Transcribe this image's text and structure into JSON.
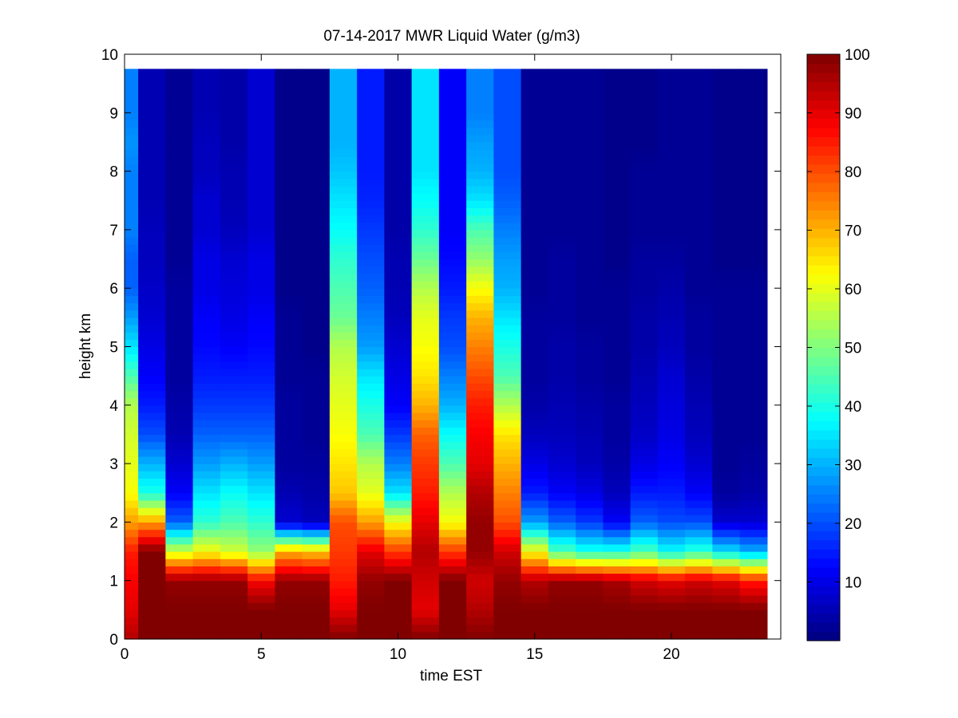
{
  "chart_data": {
    "type": "heatmap",
    "title": "07-14-2017 MWR Liquid Water (g/m3)",
    "xlabel": "time EST",
    "ylabel": "height km",
    "xlim": [
      0,
      24
    ],
    "ylim": [
      0,
      10
    ],
    "x_ticks": [
      0,
      5,
      10,
      15,
      20
    ],
    "y_ticks": [
      0,
      1,
      2,
      3,
      4,
      5,
      6,
      7,
      8,
      9,
      10
    ],
    "colorbar": {
      "range": [
        0,
        100
      ],
      "ticks": [
        10,
        20,
        30,
        40,
        50,
        60,
        70,
        80,
        90,
        100
      ],
      "colormap": "jet"
    },
    "x": [
      0,
      1,
      2,
      3,
      4,
      5,
      6,
      7,
      8,
      9,
      10,
      11,
      12,
      13,
      14,
      15,
      16,
      17,
      18,
      19,
      20,
      21,
      22,
      23
    ],
    "height_top": 9.75,
    "profile_height_km": [
      0,
      0.5,
      1,
      1.5,
      2,
      2.5,
      3,
      3.5,
      4,
      4.5,
      5,
      5.5,
      6,
      6.5,
      7,
      7.5,
      8,
      8.5,
      9,
      9.75
    ],
    "profiles": [
      [
        95,
        90,
        88,
        85,
        72,
        62,
        60,
        58,
        55,
        45,
        35,
        28,
        22,
        22,
        25,
        25,
        25,
        27,
        25,
        25
      ],
      [
        100,
        100,
        100,
        100,
        72,
        40,
        30,
        20,
        15,
        12,
        10,
        8,
        7,
        6,
        6,
        5,
        5,
        5,
        5,
        5
      ],
      [
        100,
        100,
        98,
        58,
        22,
        12,
        8,
        5,
        4,
        3,
        3,
        3,
        3,
        2,
        2,
        2,
        2,
        2,
        2,
        2
      ],
      [
        100,
        100,
        98,
        62,
        42,
        35,
        28,
        22,
        18,
        15,
        13,
        12,
        10,
        10,
        8,
        8,
        6,
        6,
        5,
        5
      ],
      [
        100,
        100,
        98,
        58,
        45,
        38,
        30,
        22,
        18,
        15,
        12,
        10,
        9,
        8,
        6,
        5,
        5,
        4,
        4,
        4
      ],
      [
        100,
        100,
        88,
        52,
        42,
        35,
        28,
        22,
        18,
        15,
        13,
        12,
        10,
        10,
        8,
        8,
        8,
        8,
        8,
        8
      ],
      [
        100,
        100,
        98,
        70,
        8,
        5,
        3,
        3,
        3,
        2,
        2,
        2,
        1,
        1,
        1,
        1,
        1,
        1,
        1,
        1
      ],
      [
        100,
        100,
        98,
        68,
        6,
        4,
        3,
        2,
        2,
        2,
        1,
        1,
        1,
        1,
        1,
        1,
        1,
        1,
        1,
        1
      ],
      [
        100,
        90,
        85,
        82,
        80,
        68,
        65,
        62,
        60,
        58,
        55,
        48,
        45,
        42,
        38,
        35,
        32,
        30,
        30,
        30
      ],
      [
        100,
        100,
        98,
        90,
        72,
        60,
        55,
        45,
        40,
        35,
        28,
        25,
        22,
        20,
        18,
        16,
        15,
        15,
        15,
        15
      ],
      [
        100,
        100,
        100,
        82,
        62,
        35,
        25,
        18,
        12,
        10,
        8,
        6,
        5,
        5,
        4,
        4,
        4,
        4,
        4,
        4
      ],
      [
        100,
        90,
        92,
        95,
        90,
        85,
        82,
        78,
        70,
        65,
        62,
        60,
        55,
        48,
        42,
        38,
        35,
        35,
        35,
        35
      ],
      [
        100,
        100,
        100,
        82,
        62,
        55,
        45,
        38,
        30,
        25,
        20,
        18,
        15,
        13,
        12,
        12,
        12,
        12,
        12,
        12
      ],
      [
        100,
        95,
        92,
        98,
        98,
        95,
        90,
        88,
        85,
        80,
        75,
        70,
        62,
        52,
        45,
        35,
        30,
        28,
        25,
        25
      ],
      [
        100,
        100,
        98,
        92,
        80,
        75,
        70,
        65,
        55,
        45,
        40,
        35,
        30,
        28,
        25,
        22,
        20,
        20,
        20,
        20
      ],
      [
        100,
        100,
        95,
        62,
        28,
        15,
        10,
        6,
        4,
        3,
        3,
        3,
        2,
        2,
        2,
        2,
        2,
        2,
        2,
        2
      ],
      [
        100,
        100,
        98,
        45,
        22,
        12,
        8,
        6,
        5,
        4,
        4,
        3,
        3,
        3,
        2,
        2,
        2,
        2,
        2,
        2
      ],
      [
        100,
        100,
        98,
        40,
        18,
        10,
        6,
        5,
        4,
        3,
        3,
        2,
        2,
        2,
        2,
        2,
        2,
        2,
        2,
        2
      ],
      [
        100,
        100,
        96,
        40,
        12,
        6,
        4,
        3,
        3,
        2,
        2,
        2,
        2,
        1,
        1,
        1,
        1,
        1,
        1,
        1
      ],
      [
        100,
        100,
        92,
        45,
        22,
        15,
        10,
        7,
        6,
        5,
        4,
        4,
        3,
        3,
        2,
        2,
        2,
        1,
        1,
        1
      ],
      [
        100,
        100,
        90,
        38,
        20,
        15,
        12,
        10,
        9,
        8,
        6,
        5,
        4,
        3,
        2,
        2,
        2,
        2,
        2,
        2
      ],
      [
        100,
        100,
        92,
        42,
        20,
        12,
        8,
        6,
        5,
        4,
        3,
        3,
        2,
        2,
        2,
        2,
        2,
        2,
        2,
        2
      ],
      [
        100,
        100,
        90,
        35,
        8,
        3,
        2,
        2,
        2,
        2,
        2,
        2,
        2,
        1,
        1,
        1,
        1,
        1,
        1,
        1
      ],
      [
        100,
        100,
        85,
        30,
        8,
        4,
        3,
        2,
        2,
        2,
        2,
        2,
        2,
        1,
        1,
        1,
        1,
        1,
        1,
        1
      ]
    ]
  }
}
